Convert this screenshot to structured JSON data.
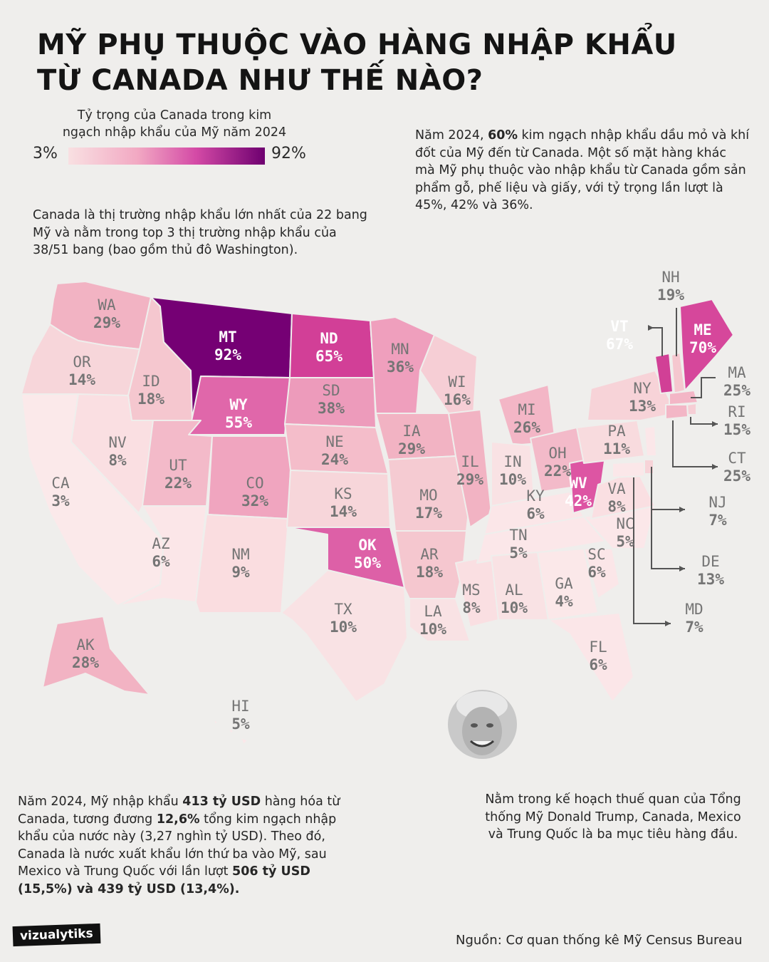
{
  "title": {
    "line1": "MỸ PHỤ THUỘC VÀO HÀNG NHẬP KHẨU",
    "line2": "TỪ CANADA NHƯ THẾ NÀO?"
  },
  "legend": {
    "title_line1": "Tỷ trọng của Canada trong kim",
    "title_line2": "ngạch nhập khẩu của Mỹ năm 2024",
    "min": "3%",
    "max": "92%",
    "color_low": "#f9e0e2",
    "color_high": "#6e0070"
  },
  "top_right_text": {
    "t1": "Năm 2024, ",
    "bold1": "60%",
    "t2": " kim ngạch nhập khẩu dầu mỏ và khí đốt của Mỹ đến từ Canada. Một số mặt hàng khác mà Mỹ phụ thuộc vào nhập khẩu từ Canada gồm sản phẩm gỗ, phế liệu và giấy, với tỷ trọng lần lượt là 45%, 42% và 36%."
  },
  "left_text": "Canada là thị trường nhập khẩu lớn nhất của 22 bang Mỹ và nằm trong top 3 thị trường nhập khẩu của 38/51 bang (bao gồm thủ đô Washington).",
  "bottom_text": {
    "t1": "Năm 2024, Mỹ nhập khẩu ",
    "bold1": "413 tỷ USD",
    "t2": " hàng hóa từ Canada, tương đương ",
    "bold2": "12,6%",
    "t3": " tổng kim ngạch nhập khẩu của nước này (3,27 nghìn tỷ USD). Theo đó, Canada là nước xuất khẩu lớn thứ ba vào Mỹ, sau Mexico và Trung Quốc với lần lượt ",
    "bold3": "506 tỷ USD (15,5%) và 439 tỷ USD (13,4%)."
  },
  "trump_text": "Nằm trong kế hoạch thuế quan của Tổng thống Mỹ Donald Trump, Canada, Mexico và Trung Quốc là ba mục tiêu hàng đầu.",
  "logo": "vizualytiks",
  "source": "Nguồn: Cơ quan thống kê Mỹ Census Bureau",
  "states": [
    {
      "code": "WA",
      "value": "29%"
    },
    {
      "code": "OR",
      "value": "14%"
    },
    {
      "code": "CA",
      "value": "3%"
    },
    {
      "code": "ID",
      "value": "18%"
    },
    {
      "code": "NV",
      "value": "8%"
    },
    {
      "code": "MT",
      "value": "92%"
    },
    {
      "code": "WY",
      "value": "55%"
    },
    {
      "code": "UT",
      "value": "22%"
    },
    {
      "code": "AZ",
      "value": "6%"
    },
    {
      "code": "CO",
      "value": "32%"
    },
    {
      "code": "NM",
      "value": "9%"
    },
    {
      "code": "ND",
      "value": "65%"
    },
    {
      "code": "SD",
      "value": "38%"
    },
    {
      "code": "NE",
      "value": "24%"
    },
    {
      "code": "KS",
      "value": "14%"
    },
    {
      "code": "OK",
      "value": "50%"
    },
    {
      "code": "TX",
      "value": "10%"
    },
    {
      "code": "MN",
      "value": "36%"
    },
    {
      "code": "IA",
      "value": "29%"
    },
    {
      "code": "MO",
      "value": "17%"
    },
    {
      "code": "AR",
      "value": "18%"
    },
    {
      "code": "LA",
      "value": "10%"
    },
    {
      "code": "WI",
      "value": "16%"
    },
    {
      "code": "IL",
      "value": "29%"
    },
    {
      "code": "MS",
      "value": "8%"
    },
    {
      "code": "MI",
      "value": "26%"
    },
    {
      "code": "IN",
      "value": "10%"
    },
    {
      "code": "KY",
      "value": "6%"
    },
    {
      "code": "TN",
      "value": "5%"
    },
    {
      "code": "AL",
      "value": "10%"
    },
    {
      "code": "OH",
      "value": "22%"
    },
    {
      "code": "WV",
      "value": "42%"
    },
    {
      "code": "GA",
      "value": "4%"
    },
    {
      "code": "FL",
      "value": "6%"
    },
    {
      "code": "SC",
      "value": "6%"
    },
    {
      "code": "NC",
      "value": "5%"
    },
    {
      "code": "VA",
      "value": "8%"
    },
    {
      "code": "PA",
      "value": "11%"
    },
    {
      "code": "NY",
      "value": "13%"
    },
    {
      "code": "VT",
      "value": "67%"
    },
    {
      "code": "NH",
      "value": "19%"
    },
    {
      "code": "ME",
      "value": "70%"
    },
    {
      "code": "MA",
      "value": "25%"
    },
    {
      "code": "RI",
      "value": "15%"
    },
    {
      "code": "CT",
      "value": "25%"
    },
    {
      "code": "NJ",
      "value": "7%"
    },
    {
      "code": "DE",
      "value": "13%"
    },
    {
      "code": "MD",
      "value": "7%"
    },
    {
      "code": "AK",
      "value": "28%"
    },
    {
      "code": "HI",
      "value": "5%"
    }
  ]
}
